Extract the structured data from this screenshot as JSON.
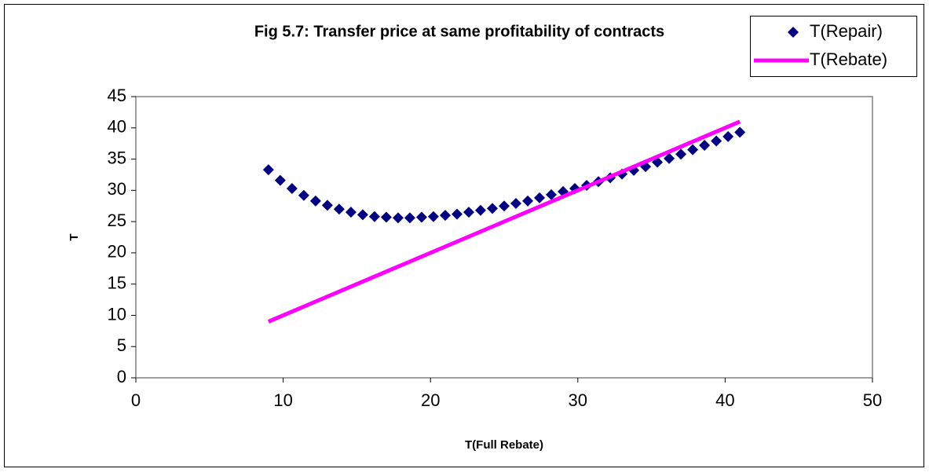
{
  "chart_data": {
    "type": "scatter",
    "title": "Fig 5.7: Transfer price at same profitability of contracts",
    "x_label": "T(Full Rebate)",
    "y_label": "T",
    "xlim": [
      0,
      50
    ],
    "xticks": [
      0,
      10,
      20,
      30,
      40,
      50
    ],
    "ylim": [
      0,
      45
    ],
    "yticks": [
      0,
      5,
      10,
      15,
      20,
      25,
      30,
      35,
      40,
      45
    ],
    "grid": false,
    "legend": "top-right",
    "series": [
      {
        "name": "T(Repair)",
        "color": "#000080",
        "marker": "diamond",
        "x": [
          9,
          9.8,
          10.6,
          11.4,
          12.2,
          13,
          13.8,
          14.6,
          15.4,
          16.2,
          17,
          17.8,
          18.6,
          19.4,
          20.2,
          21,
          21.8,
          22.6,
          23.4,
          24.2,
          25,
          25.8,
          26.6,
          27.4,
          28.2,
          29,
          29.8,
          30.6,
          31.4,
          32.2,
          33,
          33.8,
          34.6,
          35.4,
          36.2,
          37,
          37.8,
          38.6,
          39.4,
          40.2,
          41
        ],
        "values": [
          33.3,
          31.6,
          30.3,
          29.2,
          28.3,
          27.6,
          27.0,
          26.5,
          26.1,
          25.8,
          25.7,
          25.6,
          25.6,
          25.7,
          25.8,
          26.0,
          26.2,
          26.5,
          26.8,
          27.1,
          27.5,
          27.9,
          28.3,
          28.8,
          29.3,
          29.8,
          30.3,
          30.8,
          31.4,
          32.0,
          32.6,
          33.2,
          33.8,
          34.5,
          35.1,
          35.8,
          36.5,
          37.2,
          37.9,
          38.6,
          39.3
        ]
      },
      {
        "name": "T(Rebate)",
        "color": "#ff00ff",
        "marker": "line",
        "x": [
          9,
          41
        ],
        "values": [
          9,
          41
        ]
      }
    ]
  }
}
